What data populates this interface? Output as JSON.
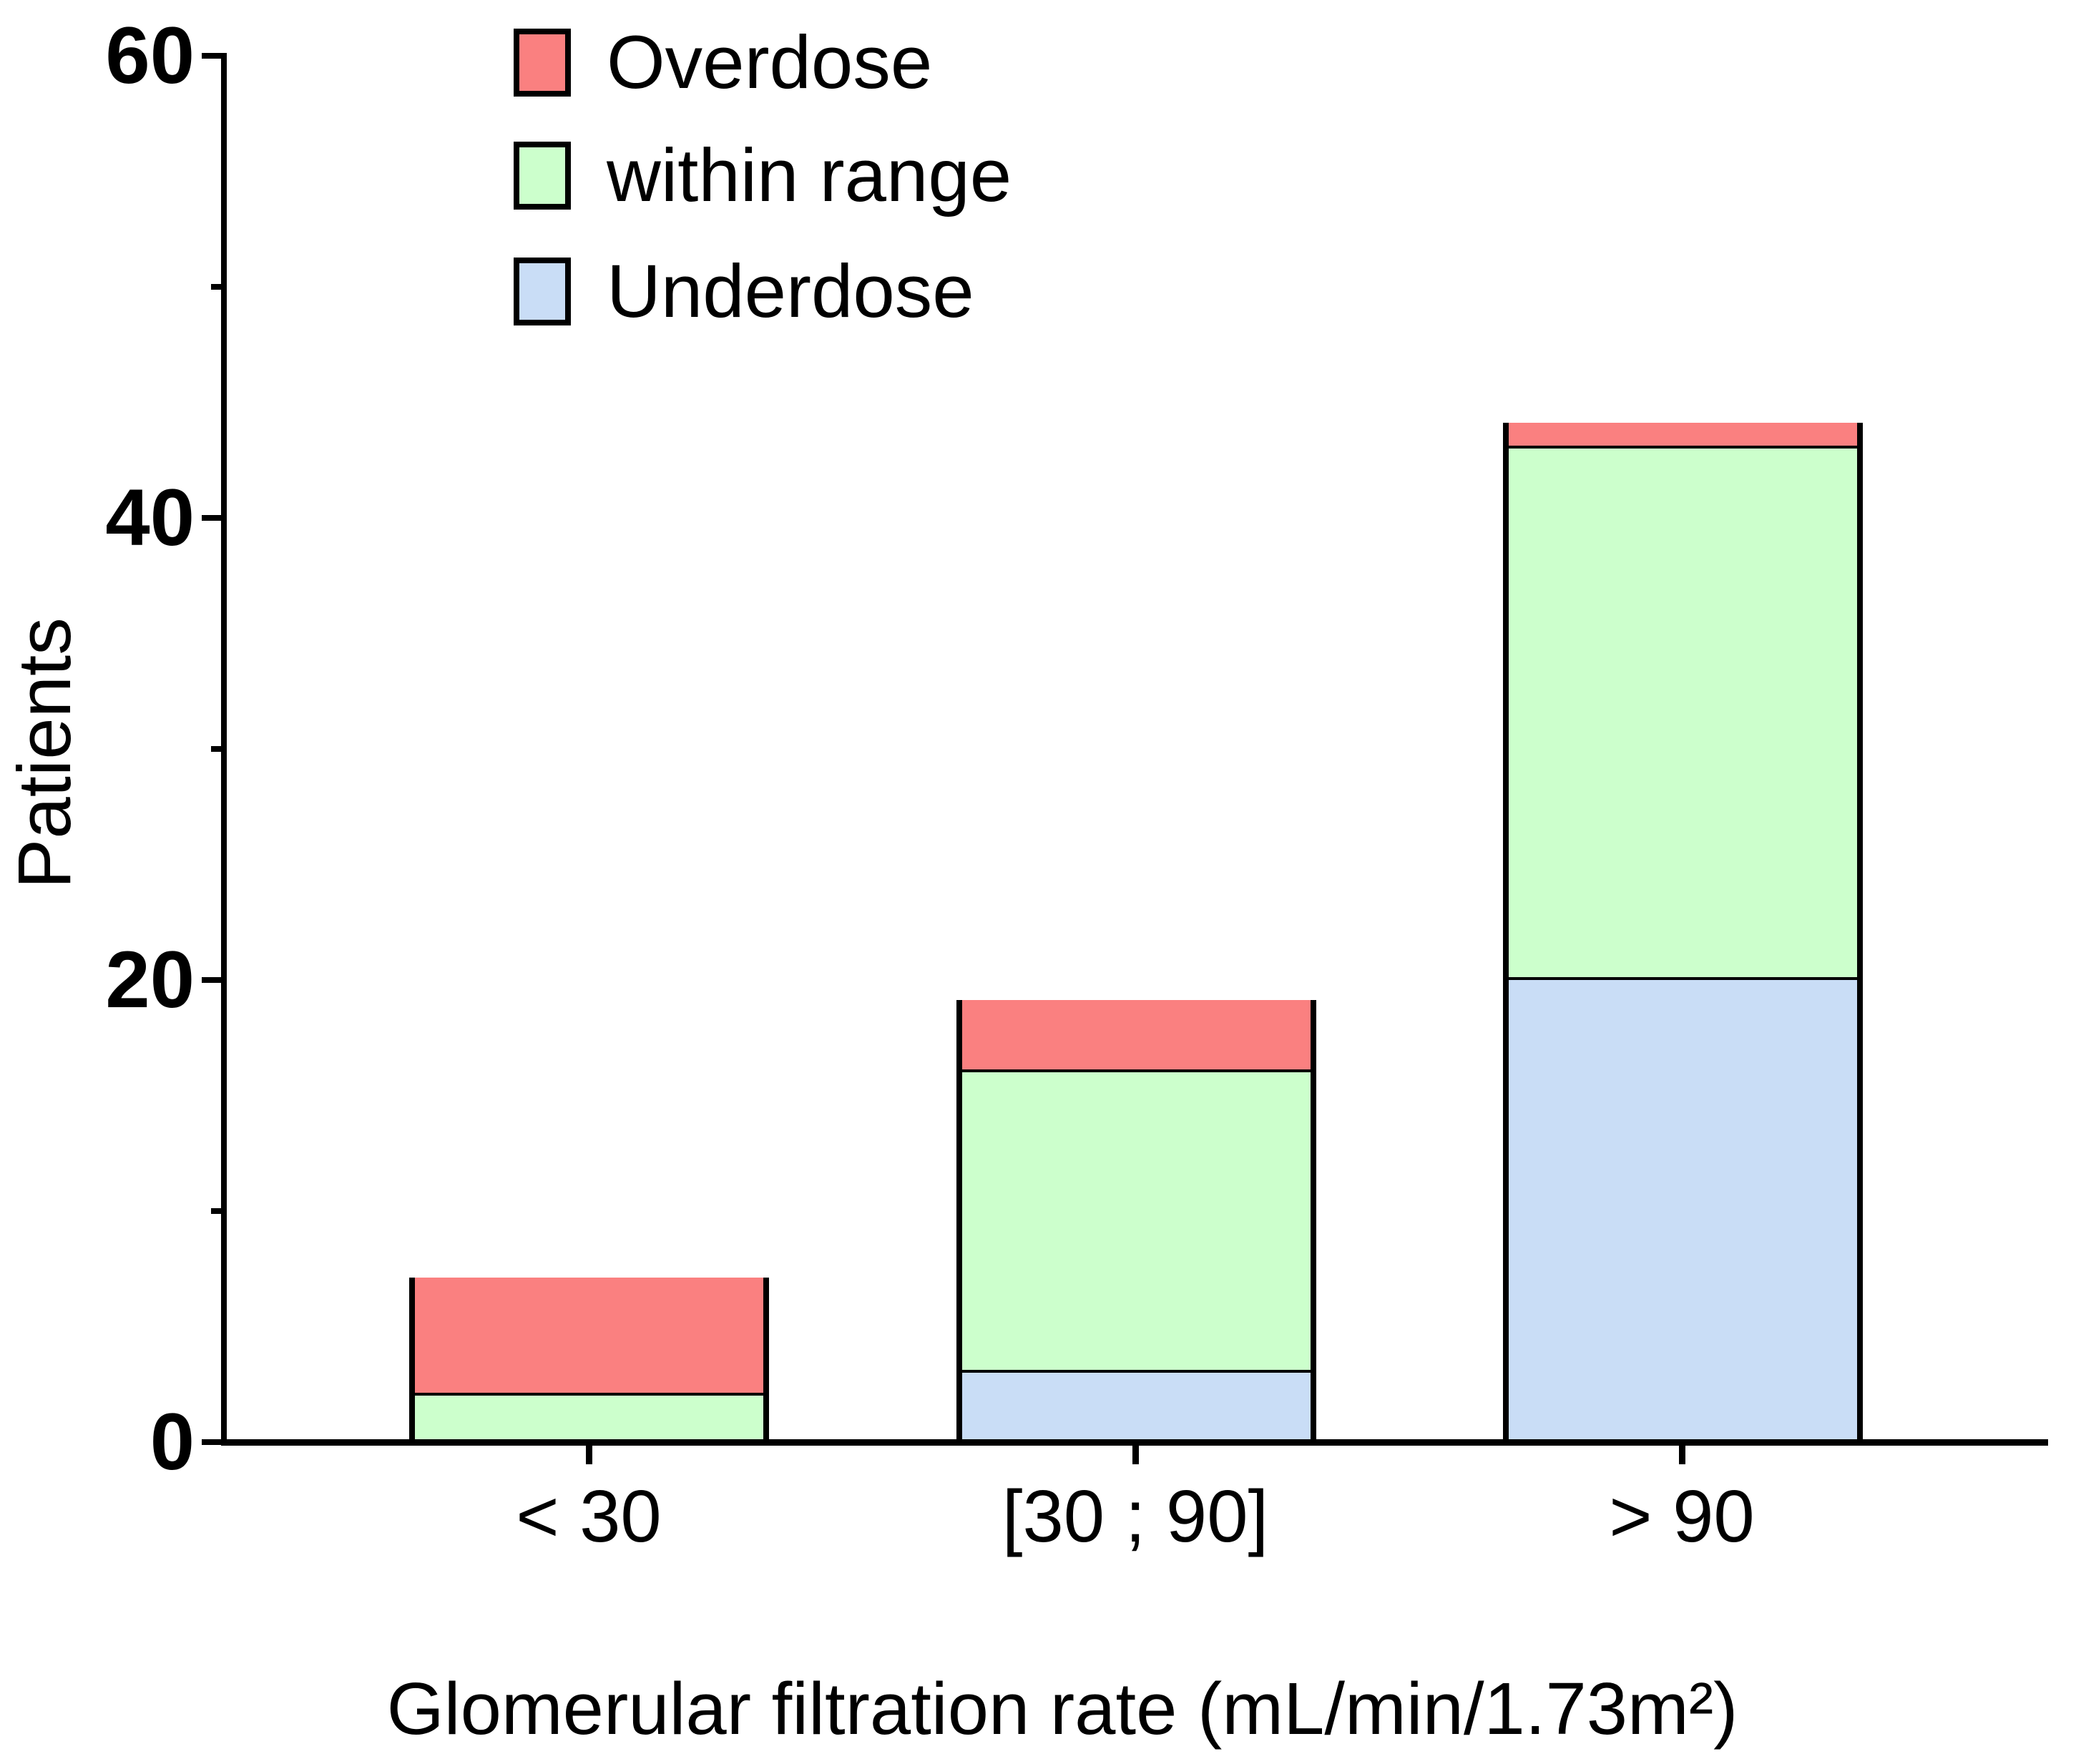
{
  "chart_data": {
    "type": "bar",
    "stacked": true,
    "categories": [
      "< 30",
      "[30 ; 90]",
      "> 90"
    ],
    "series": [
      {
        "name": "Underdose",
        "color": "#C9DDF6",
        "values": [
          0,
          3,
          20
        ]
      },
      {
        "name": "within range",
        "color": "#CCFFCC",
        "values": [
          2,
          13,
          23
        ]
      },
      {
        "name": "Overdose",
        "color": "#FA8080",
        "values": [
          5,
          3,
          1
        ]
      }
    ],
    "totals": [
      7,
      19,
      44
    ],
    "xlabel": "Glomerular filtration rate (mL/min/1.73m²)",
    "ylabel": "Patients",
    "ylim": [
      0,
      60
    ],
    "y_major_ticks": [
      "0",
      "20",
      "40",
      "60"
    ],
    "y_minor_ticks": [
      10,
      30,
      50
    ],
    "grid": false,
    "legend_position": "top-left",
    "legend_order": [
      "Overdose",
      "within range",
      "Underdose"
    ]
  },
  "colors": {
    "axis": "#000000",
    "background": "#FFFFFF",
    "overdose": "#FA8080",
    "within_range": "#CCFFCC",
    "underdose": "#C9DDF6"
  }
}
